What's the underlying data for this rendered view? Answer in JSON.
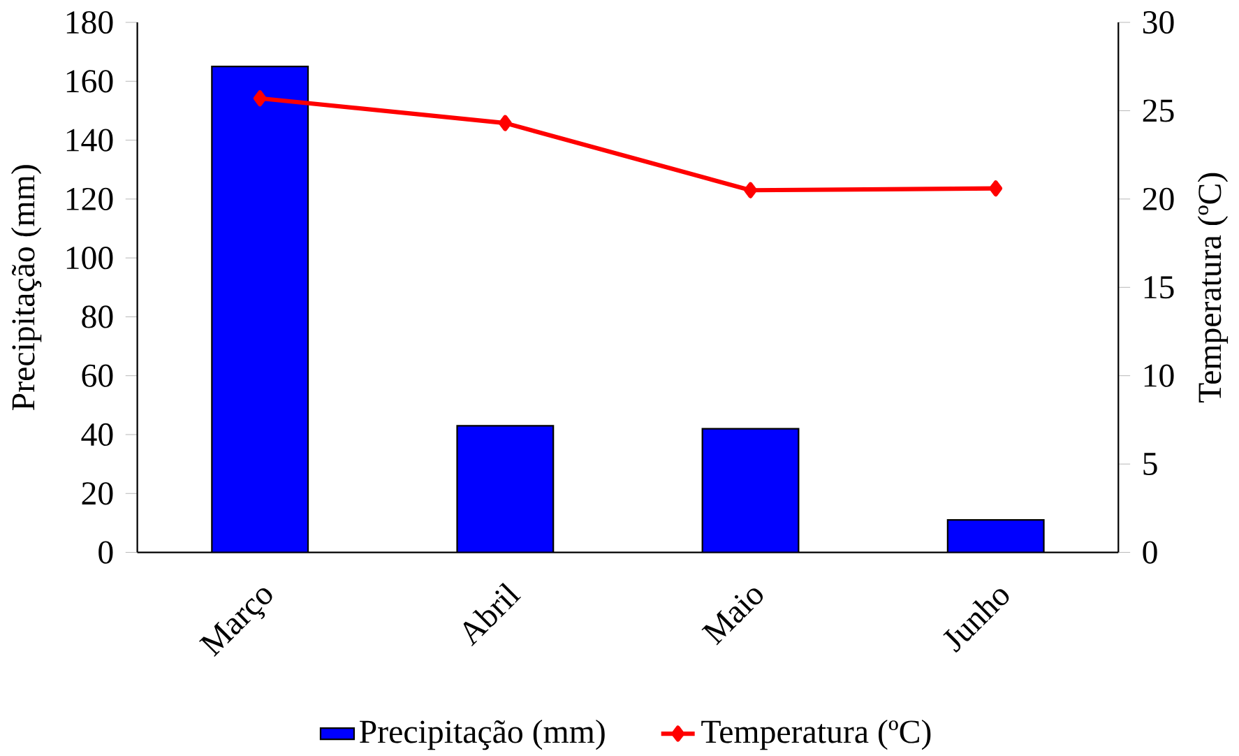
{
  "chart_data": {
    "type": "bar",
    "categories": [
      "Março",
      "Abril",
      "Maio",
      "Junho"
    ],
    "ylabel": "Precipitação (mm)",
    "y2label": "Temperatura (ºC)",
    "ylim": [
      0,
      180
    ],
    "yticks": [
      0,
      20,
      40,
      60,
      80,
      100,
      120,
      140,
      160,
      180
    ],
    "y2lim": [
      0,
      30
    ],
    "y2ticks": [
      0,
      5,
      10,
      15,
      20,
      25,
      30
    ],
    "legend": "bottom",
    "marker": "diamond",
    "series": [
      {
        "name": "Precipitação (mm)",
        "color": "#0000ff",
        "values": [
          165,
          43,
          42,
          11
        ]
      },
      {
        "name": "Temperatura (ºC)",
        "type": "line",
        "axis": "y2",
        "color": "#ff0000",
        "values": [
          25.7,
          24.3,
          20.5,
          20.6
        ]
      }
    ]
  }
}
